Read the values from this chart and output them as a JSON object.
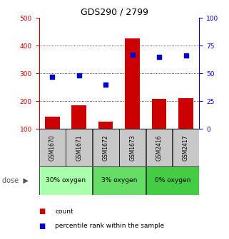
{
  "title": "GDS290 / 2799",
  "samples": [
    "GSM1670",
    "GSM1671",
    "GSM1672",
    "GSM1673",
    "GSM2416",
    "GSM2417"
  ],
  "bar_values": [
    145,
    185,
    128,
    425,
    208,
    212
  ],
  "scatter_values": [
    47,
    48,
    40,
    67,
    65,
    66
  ],
  "groups": [
    {
      "label": "30% oxygen",
      "color": "#aaffaa"
    },
    {
      "label": "3% oxygen",
      "color": "#66dd66"
    },
    {
      "label": "0% oxygen",
      "color": "#44cc44"
    }
  ],
  "bar_color": "#cc0000",
  "scatter_color": "#0000cc",
  "left_ylim": [
    100,
    500
  ],
  "left_yticks": [
    100,
    200,
    300,
    400,
    500
  ],
  "right_ylim": [
    0,
    100
  ],
  "right_yticks": [
    0,
    25,
    50,
    75,
    100
  ],
  "grid_yticks": [
    200,
    300,
    400
  ],
  "legend_bar": "count",
  "legend_scatter": "percentile rank within the sample",
  "bg_color": "#ffffff",
  "sample_box_color": "#c8c8c8",
  "title_fontsize": 9,
  "tick_fontsize": 6.5,
  "sample_fontsize": 5.5,
  "group_fontsize": 6.5,
  "legend_fontsize": 6.5
}
